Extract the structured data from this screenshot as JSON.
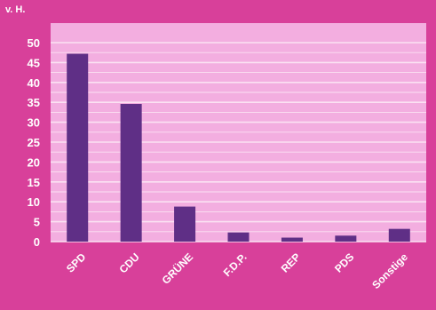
{
  "chart_data": {
    "type": "bar",
    "title": "",
    "xlabel": "",
    "ylabel": "v. H.",
    "ylim": [
      0,
      50
    ],
    "yticks": [
      0,
      5,
      10,
      15,
      20,
      25,
      30,
      35,
      40,
      45,
      50
    ],
    "grid": true,
    "categories": [
      "SPD",
      "CDU",
      "GRÜNE",
      "F.D.P.",
      "REP",
      "PDS",
      "Sonstige"
    ],
    "values": [
      47.2,
      34.6,
      8.8,
      2.3,
      1.0,
      1.5,
      3.2
    ],
    "colors": {
      "background": "#d8409a",
      "plot_area": "#f3aee0",
      "grid": "#fbe2f3",
      "bar": "#5f2f86"
    }
  }
}
